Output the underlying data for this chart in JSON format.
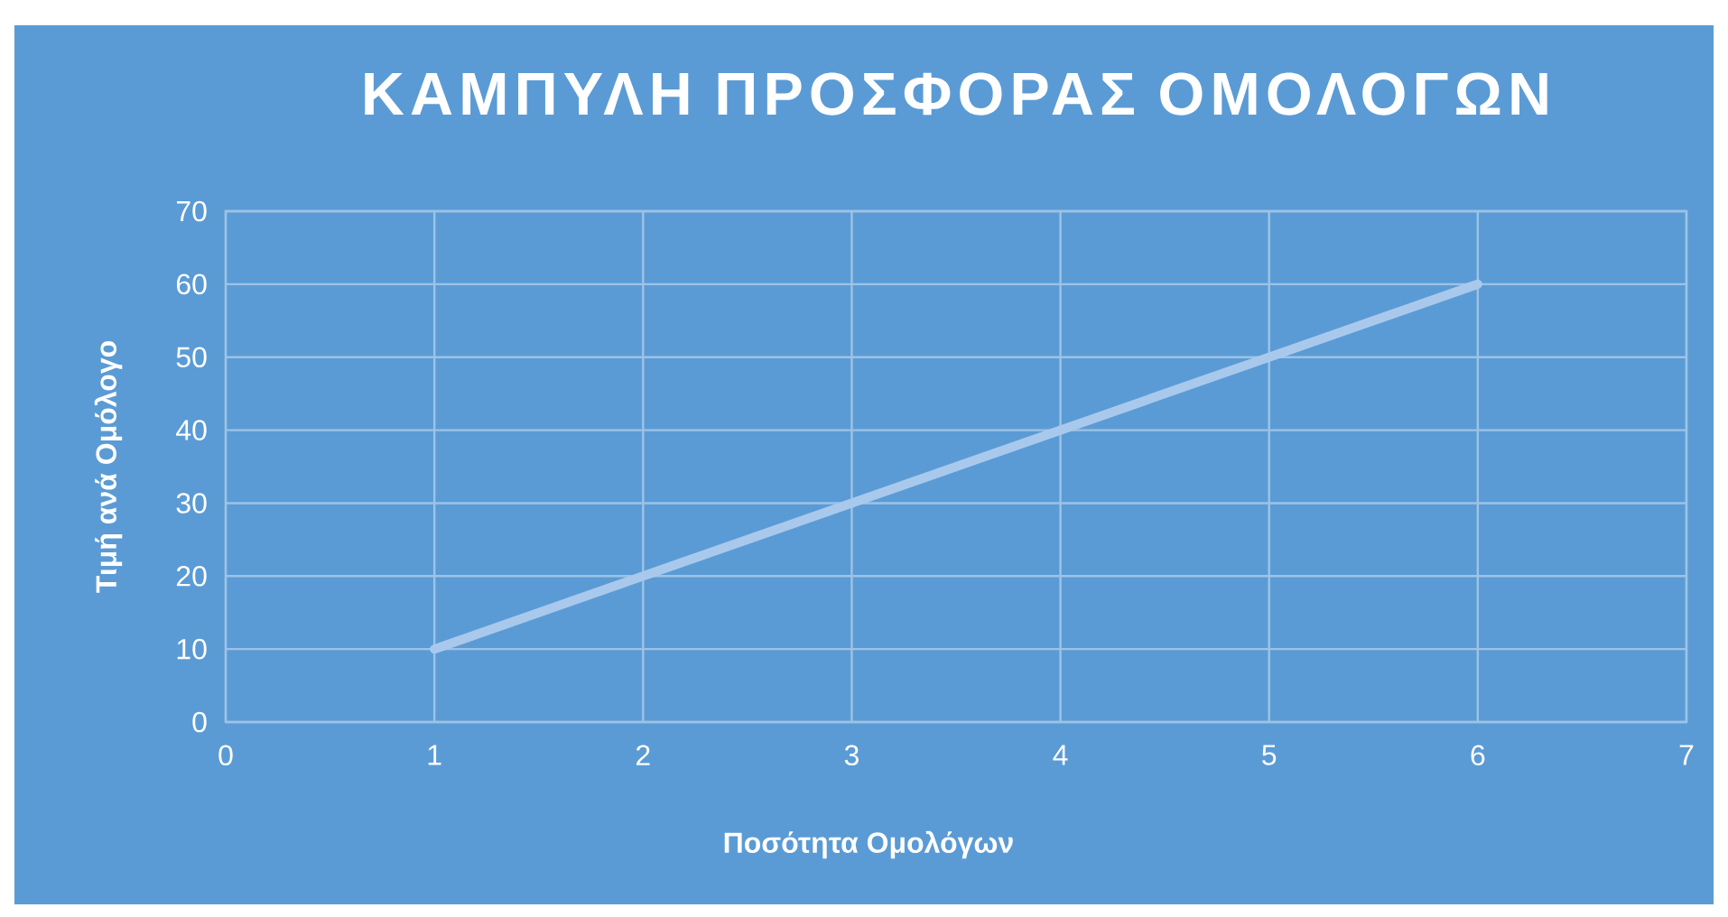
{
  "chart_data": {
    "type": "line",
    "title": "ΚΑΜΠΥΛΗ ΠΡΟΣΦΟΡΑΣ ΟΜΟΛΟΓΩΝ",
    "xlabel": "Ποσότητα Ομολόγων",
    "ylabel": "Τιμή ανά Ομόλογο",
    "x": [
      1,
      2,
      3,
      4,
      5,
      6
    ],
    "series": [
      {
        "color": "#a9c9ec",
        "values": [
          10,
          20,
          30,
          40,
          50,
          60
        ]
      }
    ],
    "xlim": [
      0,
      7
    ],
    "ylim": [
      0,
      70
    ],
    "xticks": [
      0,
      1,
      2,
      3,
      4,
      5,
      6,
      7
    ],
    "yticks": [
      0,
      10,
      20,
      30,
      40,
      50,
      60,
      70
    ],
    "grid": true
  }
}
